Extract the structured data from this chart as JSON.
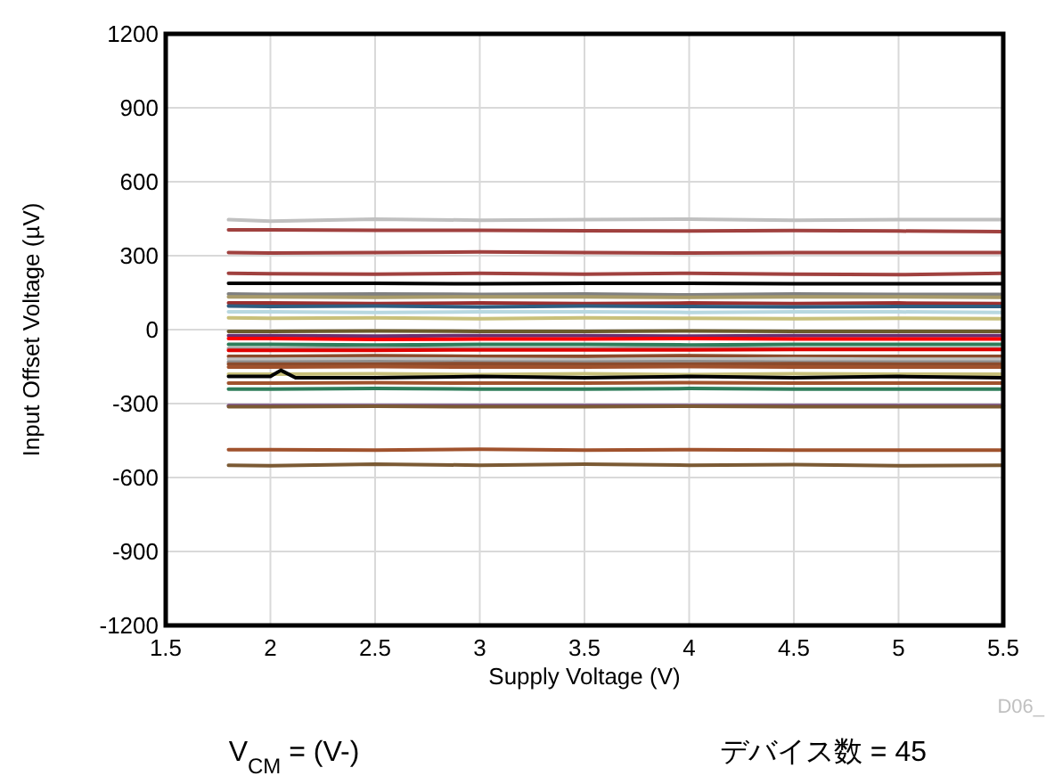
{
  "chart_data": {
    "type": "line",
    "xlabel": "Supply Voltage (V)",
    "ylabel": "Input Offset Voltage (µV)",
    "annotations": [
      "V$_{CM}$ = (V-)",
      "デバイス数 = 45",
      "D06_"
    ],
    "x": [
      1.8,
      2,
      2.5,
      3,
      3.5,
      4,
      4.5,
      5,
      5.5
    ],
    "xlim": [
      1.5,
      5.5
    ],
    "xticks": [
      1.5,
      2,
      2.5,
      3,
      3.5,
      4,
      4.5,
      5,
      5.5
    ],
    "ylim": [
      -1200,
      1200
    ],
    "yticks": [
      -1200,
      -900,
      -600,
      -300,
      0,
      300,
      600,
      900,
      1200
    ],
    "grid": true,
    "marker": "none",
    "line_style": "solid",
    "series": [
      {
        "color": "#c0c0c0",
        "values": [
          446,
          440,
          448,
          444,
          446,
          448,
          444,
          446,
          446
        ]
      },
      {
        "color": "#a0413f",
        "values": [
          405,
          405,
          403,
          403,
          401,
          400,
          402,
          400,
          398
        ]
      },
      {
        "color": "#a0413f",
        "values": [
          313,
          311,
          313,
          315,
          313,
          311,
          313,
          313,
          313
        ]
      },
      {
        "color": "#a0413f",
        "values": [
          229,
          227,
          225,
          229,
          225,
          229,
          225,
          223,
          229
        ]
      },
      {
        "color": "#000000",
        "values": [
          188,
          188,
          188,
          186,
          188,
          188,
          186,
          186,
          186
        ]
      },
      {
        "color": "#808080",
        "values": [
          145,
          143,
          145,
          143,
          145,
          141,
          145,
          143,
          143
        ]
      },
      {
        "color": "#a89b6a",
        "values": [
          133,
          133,
          131,
          133,
          133,
          131,
          133,
          133,
          131
        ]
      },
      {
        "color": "#9b2f2f",
        "values": [
          108,
          108,
          106,
          108,
          106,
          108,
          106,
          108,
          106
        ]
      },
      {
        "color": "#2e5d80",
        "values": [
          96,
          94,
          96,
          92,
          96,
          94,
          92,
          94,
          94
        ]
      },
      {
        "color": "#b8d8e0",
        "values": [
          72,
          72,
          70,
          72,
          72,
          70,
          72,
          72,
          70
        ]
      },
      {
        "color": "#c8c07a",
        "values": [
          48,
          46,
          48,
          44,
          48,
          46,
          44,
          46,
          44
        ]
      },
      {
        "color": "#6b5a2a",
        "values": [
          -7,
          -7,
          -5,
          -7,
          -7,
          -5,
          -7,
          -7,
          -7
        ]
      },
      {
        "color": "#6a2f6f",
        "values": [
          -24,
          -24,
          -26,
          -24,
          -24,
          -26,
          -24,
          -24,
          -24
        ]
      },
      {
        "color": "#ff0000",
        "values": [
          -36,
          -36,
          -40,
          -38,
          -38,
          -36,
          -38,
          -38,
          -38
        ]
      },
      {
        "color": "#2e7d5a",
        "values": [
          -60,
          -60,
          -62,
          -60,
          -60,
          -62,
          -60,
          -60,
          -60
        ]
      },
      {
        "color": "#a0a0a0",
        "values": [
          -77,
          -77,
          -75,
          -77,
          -77,
          -75,
          -77,
          -77,
          -77
        ]
      },
      {
        "color": "#e00000",
        "values": [
          -84,
          -84,
          -84,
          -82,
          -82,
          -82,
          -80,
          -80,
          -80
        ]
      },
      {
        "color": "#8b4a2b",
        "values": [
          -108,
          -108,
          -106,
          -108,
          -108,
          -106,
          -108,
          -108,
          -108
        ]
      },
      {
        "color": "#c0c0c0",
        "values": [
          -120,
          -120,
          -118,
          -120,
          -122,
          -120,
          -118,
          -120,
          -120
        ]
      },
      {
        "color": "#909090",
        "values": [
          -132,
          -132,
          -130,
          -132,
          -132,
          -130,
          -132,
          -132,
          -132
        ]
      },
      {
        "color": "#8b4a2b",
        "values": [
          -140,
          -140,
          -140,
          -138,
          -140,
          -140,
          -138,
          -140,
          -140
        ]
      },
      {
        "color": "#a0522d",
        "values": [
          -152,
          -152,
          -150,
          -152,
          -152,
          -150,
          -152,
          -152,
          -152
        ]
      },
      {
        "color": "#c8c07a",
        "values": [
          -181,
          -181,
          -179,
          -183,
          -179,
          -183,
          -179,
          -181,
          -181
        ]
      },
      {
        "color": "#000000",
        "x": [
          1.8,
          2,
          2.05,
          2.12,
          2.5,
          3,
          3.5,
          4,
          4.5,
          5,
          5.5
        ],
        "values": [
          -190,
          -190,
          -165,
          -195,
          -195,
          -190,
          -195,
          -190,
          -195,
          -190,
          -195
        ]
      },
      {
        "color": "#a0522d",
        "values": [
          -217,
          -217,
          -215,
          -217,
          -217,
          -215,
          -217,
          -217,
          -217
        ]
      },
      {
        "color": "#2e7d5a",
        "values": [
          -241,
          -241,
          -239,
          -241,
          -241,
          -239,
          -241,
          -241,
          -241
        ]
      },
      {
        "color": "#7a4a8a",
        "values": [
          -308,
          -308,
          -308,
          -308,
          -308,
          -308,
          -308,
          -308,
          -308
        ]
      },
      {
        "color": "#7b5a34",
        "values": [
          -313,
          -313,
          -311,
          -313,
          -313,
          -311,
          -313,
          -313,
          -313
        ]
      },
      {
        "color": "#a0522d",
        "values": [
          -487,
          -487,
          -489,
          -485,
          -489,
          -487,
          -489,
          -489,
          -489
        ]
      },
      {
        "color": "#7b5a34",
        "values": [
          -550,
          -552,
          -546,
          -550,
          -546,
          -550,
          -548,
          -552,
          -550
        ]
      }
    ]
  }
}
